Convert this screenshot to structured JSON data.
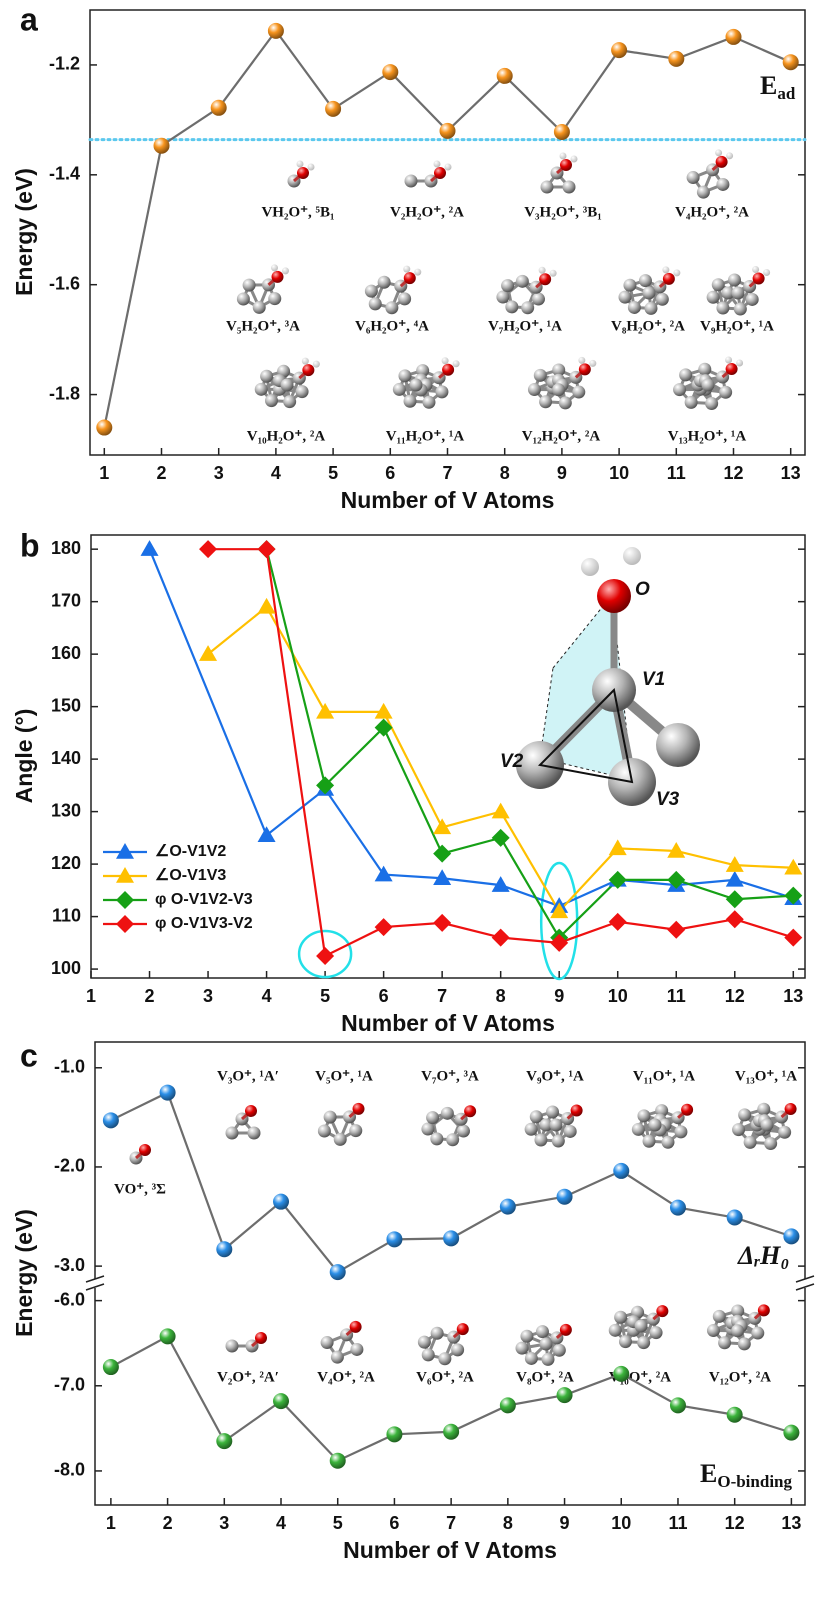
{
  "chart_data": [
    {
      "type": "line",
      "panel_label": "a",
      "xlabel": "Number of V Atoms",
      "ylabel": "Energy (eV)",
      "xlim": [
        0.75,
        13.25
      ],
      "ylim": [
        -1.91,
        -1.1
      ],
      "xticks": [
        1,
        2,
        3,
        4,
        5,
        6,
        7,
        8,
        9,
        10,
        11,
        12,
        13
      ],
      "yticks": [
        -1.2,
        -1.4,
        -1.6,
        -1.8
      ],
      "line_color": "#6d6d6d",
      "series": [
        {
          "x": [
            1,
            2,
            3,
            4,
            5,
            6,
            7,
            8,
            9,
            10,
            11,
            12,
            13
          ],
          "values": [
            -1.86,
            -1.347,
            -1.278,
            -1.138,
            -1.28,
            -1.213,
            -1.32,
            -1.22,
            -1.322,
            -1.173,
            -1.189,
            -1.149,
            -1.195
          ],
          "color": "#f7941d",
          "marker": "circle"
        }
      ],
      "series_label": {
        "text": "E",
        "sub": "ad"
      },
      "hline": {
        "value": -1.336,
        "color": "#5bc8ee"
      },
      "annotations": [
        "VH₂O⁺, ⁵B₁",
        "V₂H₂O⁺, ²A",
        "V₃H₂O⁺, ³B₁",
        "V₄H₂O⁺, ²A",
        "V₅H₂O⁺, ³A",
        "V₆H₂O⁺, ⁴A",
        "V₇H₂O⁺, ¹A",
        "V₈H₂O⁺, ²A",
        "V₉H₂O⁺, ¹A",
        "V₁₀H₂O⁺, ²A",
        "V₁₁H₂O⁺, ¹A",
        "V₁₂H₂O⁺, ²A",
        "V₁₃H₂O⁺, ¹A"
      ]
    },
    {
      "type": "line",
      "panel_label": "b",
      "xlabel": "Number of V Atoms",
      "ylabel": "Angle (°)",
      "xlim": [
        1,
        13.2
      ],
      "ylim": [
        98.3,
        182.7
      ],
      "xticks": [
        1,
        2,
        3,
        4,
        5,
        6,
        7,
        8,
        9,
        10,
        11,
        12,
        13
      ],
      "yticks": [
        100,
        110,
        120,
        130,
        140,
        150,
        160,
        170,
        180
      ],
      "legend": "lower left",
      "series": [
        {
          "name": "∠O-V1V2",
          "color": "#1a6fe6",
          "marker": "triangle",
          "x": [
            2,
            4,
            5,
            6,
            7,
            8,
            9,
            10,
            11,
            12,
            13
          ],
          "values": [
            180,
            125.5,
            134.3,
            118,
            117.3,
            116,
            112,
            117,
            116,
            117,
            113.5
          ]
        },
        {
          "name": "∠O-V1V3",
          "color": "#ffc000",
          "marker": "triangle",
          "x": [
            3,
            4,
            5,
            6,
            7,
            8,
            9,
            10,
            11,
            12,
            13
          ],
          "values": [
            160,
            169,
            149,
            149,
            127,
            130,
            111,
            123,
            122.5,
            119.8,
            119.3
          ]
        },
        {
          "name": "φ O-V1V2-V3",
          "color": "#16a016",
          "marker": "diamond",
          "x": [
            4,
            5,
            6,
            7,
            8,
            9,
            10,
            11,
            12,
            13
          ],
          "values": [
            180,
            135,
            146,
            122,
            125,
            106,
            117,
            117,
            113.3,
            114
          ]
        },
        {
          "name": "φ O-V1V3-V2",
          "color": "#ee1111",
          "marker": "diamond",
          "x": [
            3,
            4,
            5,
            6,
            7,
            8,
            9,
            10,
            11,
            12,
            13
          ],
          "values": [
            180,
            180,
            102.5,
            108,
            108.8,
            106,
            105,
            109,
            107.5,
            109.5,
            106
          ]
        }
      ],
      "highlight_x": [
        5,
        9
      ],
      "highlight_color": "#22e0e8",
      "inset_labels": [
        "O",
        "V1",
        "V2",
        "V3"
      ]
    },
    {
      "type": "line",
      "panel_label": "c",
      "xlim": [
        0.72,
        13.24
      ],
      "ylim": [
        -3.14,
        -0.74
      ],
      "yticks": [
        {
          "value": -1,
          "label": "-1.0"
        },
        {
          "value": -2,
          "label": "-2.0"
        },
        {
          "value": -3,
          "label": "-3.0"
        }
      ],
      "line_color": "#6d6d6d",
      "series": [
        {
          "x": [
            1,
            2,
            3,
            4,
            5,
            6,
            7,
            8,
            9,
            10,
            11,
            12,
            13
          ],
          "values": [
            -1.53,
            -1.25,
            -2.83,
            -2.35,
            -3.06,
            -2.73,
            -2.72,
            -2.4,
            -2.3,
            -2.04,
            -2.41,
            -2.51,
            -2.7
          ],
          "color": "#2b8fe8",
          "marker": "circle"
        }
      ],
      "series_label": {
        "text": "ΔᵣH₀"
      },
      "annotations": [
        "VO⁺, ³Σ",
        "V₃O⁺, ¹A′",
        "V₅O⁺, ¹A",
        "V₇O⁺, ³A",
        "V₉O⁺, ¹A",
        "V₁₁O⁺, ¹A",
        "V₁₃O⁺, ¹A"
      ]
    },
    {
      "type": "line",
      "xlabel": "Number of V Atoms",
      "ylabel": "Energy (eV)",
      "xlim": [
        0.72,
        13.24
      ],
      "ylim": [
        -8.4,
        -5.84
      ],
      "xticks": [
        1,
        2,
        3,
        4,
        5,
        6,
        7,
        8,
        9,
        10,
        11,
        12,
        13
      ],
      "yticks": [
        {
          "value": -6,
          "label": "-6.0"
        },
        {
          "value": -7,
          "label": "-7.0"
        },
        {
          "value": -8,
          "label": "-8.0"
        }
      ],
      "line_color": "#6d6d6d",
      "series": [
        {
          "x": [
            1,
            2,
            3,
            4,
            5,
            6,
            7,
            8,
            9,
            10,
            11,
            12,
            13
          ],
          "values": [
            -6.78,
            -6.42,
            -7.65,
            -7.18,
            -7.88,
            -7.57,
            -7.54,
            -7.23,
            -7.11,
            -6.86,
            -7.23,
            -7.34,
            -7.55
          ],
          "color": "#3cb43c",
          "marker": "circle"
        }
      ],
      "series_label": {
        "text": "E",
        "sub": "O-binding"
      },
      "annotations": [
        "V₂O⁺, ²A′",
        "V₄O⁺, ²A",
        "V₆O⁺, ²A",
        "V₈O⁺, ²A",
        "V₁₀O⁺, ²A",
        "V₁₂O⁺, ²A"
      ]
    }
  ]
}
